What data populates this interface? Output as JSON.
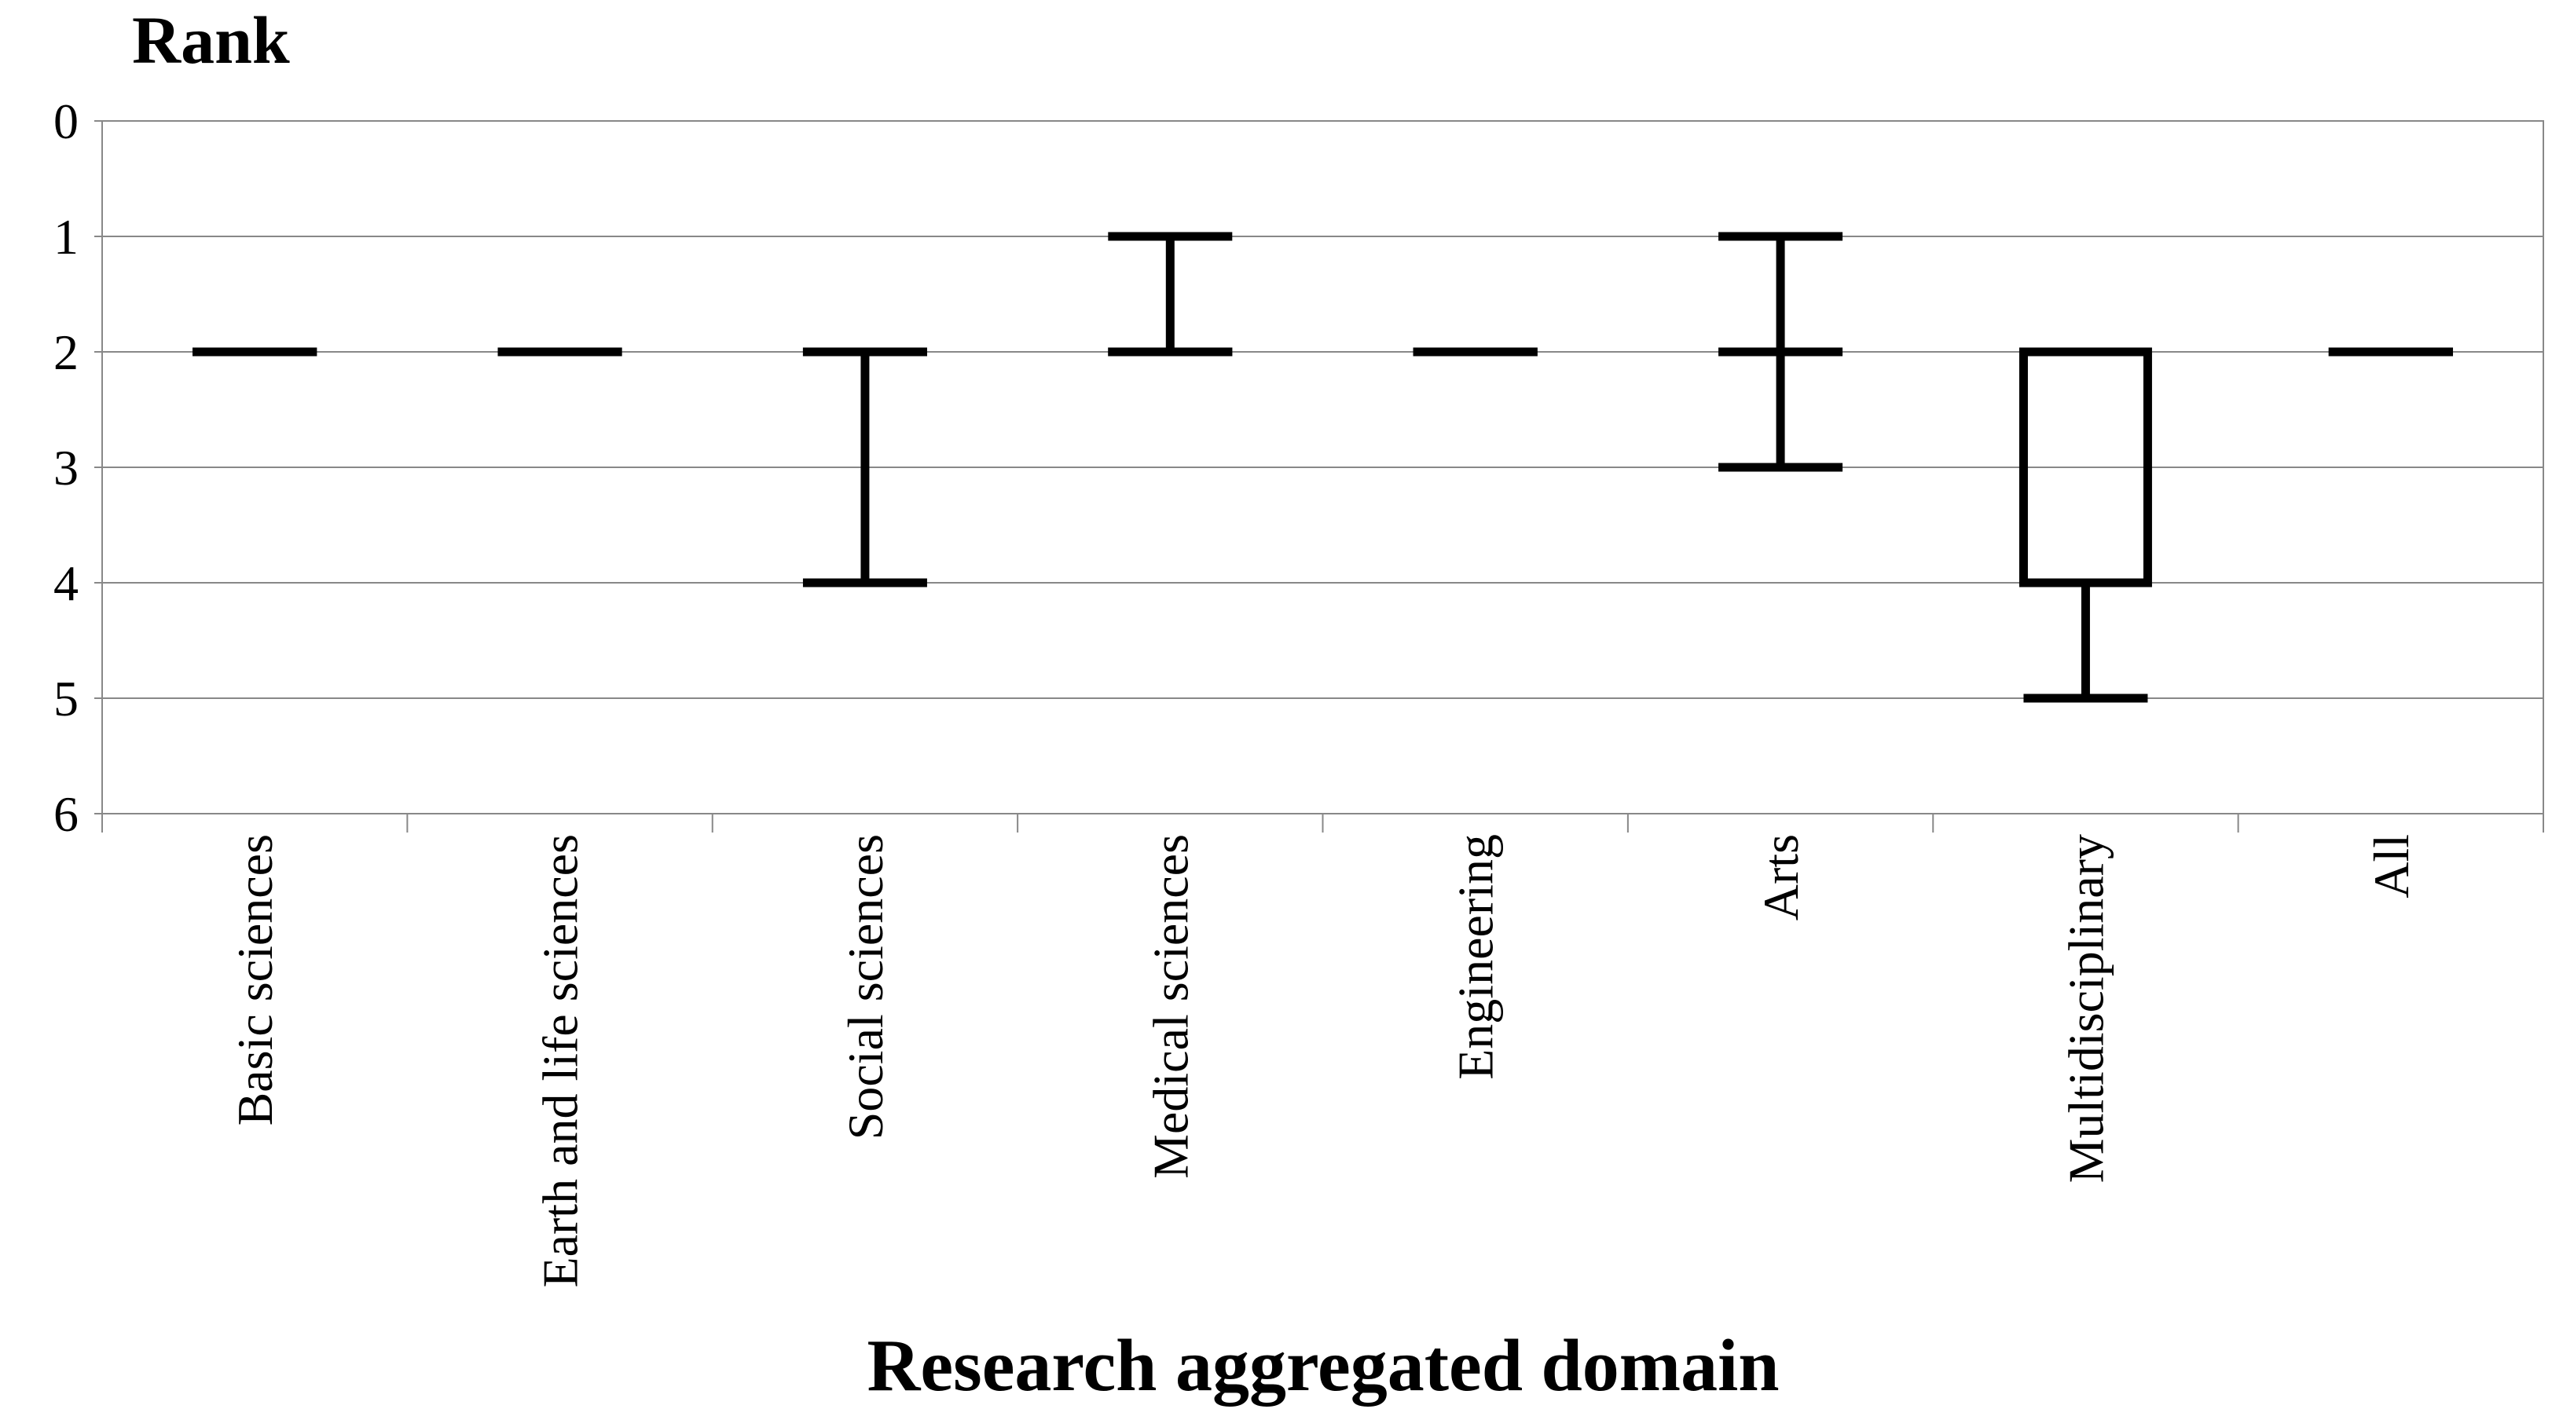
{
  "chart_data": {
    "type": "box",
    "y_title": "Rank",
    "x_title": "Research aggregated domain",
    "categories": [
      "Basic sciences",
      "Earth and life sciences",
      "Social sciences",
      "Medical sciences",
      "Engineering",
      "Arts",
      "Multidisciplinary",
      "All"
    ],
    "boxes": [
      {
        "min": 2,
        "q1": 2,
        "median": 2,
        "q3": 2,
        "max": 2
      },
      {
        "min": 2,
        "q1": 2,
        "median": 2,
        "q3": 2,
        "max": 2
      },
      {
        "min": 2,
        "q1": 2,
        "median": 2,
        "q3": 2,
        "max": 4
      },
      {
        "min": 1,
        "q1": 2,
        "median": 2,
        "q3": 2,
        "max": 2
      },
      {
        "min": 2,
        "q1": 2,
        "median": 2,
        "q3": 2,
        "max": 2
      },
      {
        "min": 1,
        "q1": 2,
        "median": 2,
        "q3": 2,
        "max": 3
      },
      {
        "min": 2,
        "q1": 2,
        "median": 2,
        "q3": 4,
        "max": 5
      },
      {
        "min": 2,
        "q1": 2,
        "median": 2,
        "q3": 2,
        "max": 2
      }
    ],
    "color": "#000000",
    "ylim": [
      0,
      6
    ],
    "yticks": [
      0,
      1,
      2,
      3,
      4,
      5,
      6
    ],
    "y_inverted": true,
    "grid": true
  }
}
